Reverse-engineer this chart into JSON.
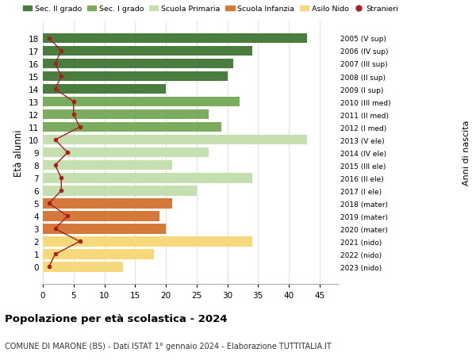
{
  "ages": [
    18,
    17,
    16,
    15,
    14,
    13,
    12,
    11,
    10,
    9,
    8,
    7,
    6,
    5,
    4,
    3,
    2,
    1,
    0
  ],
  "bar_values": [
    43,
    34,
    31,
    30,
    20,
    32,
    27,
    29,
    43,
    27,
    21,
    34,
    25,
    21,
    19,
    20,
    34,
    18,
    13
  ],
  "bar_colors": [
    "#4a7c3f",
    "#4a7c3f",
    "#4a7c3f",
    "#4a7c3f",
    "#4a7c3f",
    "#7aab5e",
    "#7aab5e",
    "#7aab5e",
    "#c5dfb0",
    "#c5dfb0",
    "#c5dfb0",
    "#c5dfb0",
    "#c5dfb0",
    "#d4793a",
    "#d4793a",
    "#d4793a",
    "#f5d97a",
    "#f5d97a",
    "#f5d97a"
  ],
  "stranieri_values": [
    1,
    3,
    2,
    3,
    2,
    5,
    5,
    6,
    2,
    4,
    2,
    3,
    3,
    1,
    4,
    2,
    6,
    2,
    1
  ],
  "right_labels": [
    "2005 (V sup)",
    "2006 (IV sup)",
    "2007 (III sup)",
    "2008 (II sup)",
    "2009 (I sup)",
    "2010 (III med)",
    "2011 (II med)",
    "2012 (I med)",
    "2013 (V ele)",
    "2014 (IV ele)",
    "2015 (III ele)",
    "2016 (II ele)",
    "2017 (I ele)",
    "2018 (mater)",
    "2019 (mater)",
    "2020 (mater)",
    "2021 (nido)",
    "2022 (nido)",
    "2023 (nido)"
  ],
  "legend_labels": [
    "Sec. II grado",
    "Sec. I grado",
    "Scuola Primaria",
    "Scuola Infanzia",
    "Asilo Nido",
    "Stranieri"
  ],
  "legend_colors": [
    "#4a7c3f",
    "#7aab5e",
    "#c5dfb0",
    "#d4793a",
    "#f5d97a",
    "#a52020"
  ],
  "ylabel": "Età alunni",
  "ylabel_right": "Anni di nascita",
  "title": "Popolazione per età scolastica - 2024",
  "subtitle": "COMUNE DI MARONE (BS) - Dati ISTAT 1° gennaio 2024 - Elaborazione TUTTITALIA.IT",
  "xlim": [
    0,
    48
  ],
  "xticks": [
    0,
    5,
    10,
    15,
    20,
    25,
    30,
    35,
    40,
    45
  ],
  "grid_color": "#dddddd",
  "bar_height": 0.78,
  "stranieri_color": "#a52020",
  "stranieri_markersize": 4,
  "stranieri_linewidth": 1.0
}
